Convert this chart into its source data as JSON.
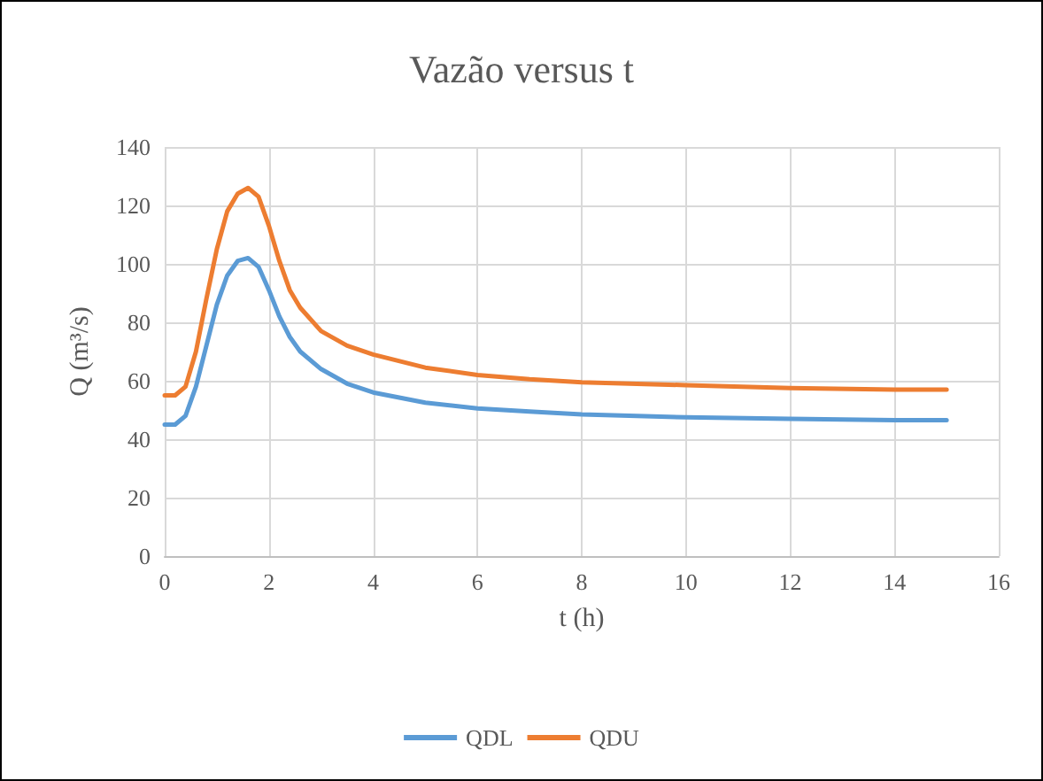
{
  "chart_data": {
    "type": "line",
    "title": "Vazão versus t",
    "xlabel": "t (h)",
    "ylabel": "Q (m³/s)",
    "x": [
      0,
      0.2,
      0.4,
      0.6,
      0.8,
      1.0,
      1.2,
      1.4,
      1.6,
      1.8,
      2.0,
      2.2,
      2.4,
      2.6,
      3,
      3.5,
      4,
      5,
      6,
      7,
      8,
      10,
      12,
      14,
      15
    ],
    "series": [
      {
        "name": "QDL",
        "color": "#5b9bd5",
        "values": [
          45,
          45,
          48,
          58,
          72,
          86,
          96,
          101,
          102,
          99,
          91,
          82,
          75,
          70,
          64,
          59,
          56,
          52.5,
          50.5,
          49.5,
          48.5,
          47.5,
          47,
          46.5,
          46.5
        ]
      },
      {
        "name": "QDU",
        "color": "#ed7d31",
        "values": [
          55,
          55,
          58,
          70,
          88,
          105,
          118,
          124,
          126,
          123,
          113,
          101,
          91,
          85,
          77,
          72,
          69,
          64.5,
          62,
          60.5,
          59.5,
          58.5,
          57.5,
          57,
          57
        ]
      }
    ],
    "xlim": [
      0,
      16
    ],
    "xticks": [
      0,
      2,
      4,
      6,
      8,
      10,
      12,
      14,
      16
    ],
    "ylim": [
      0,
      140
    ],
    "yticks": [
      0,
      20,
      40,
      60,
      80,
      100,
      120,
      140
    ],
    "grid": true,
    "legend": "bottom",
    "marker": "none",
    "line_style": "solid"
  }
}
